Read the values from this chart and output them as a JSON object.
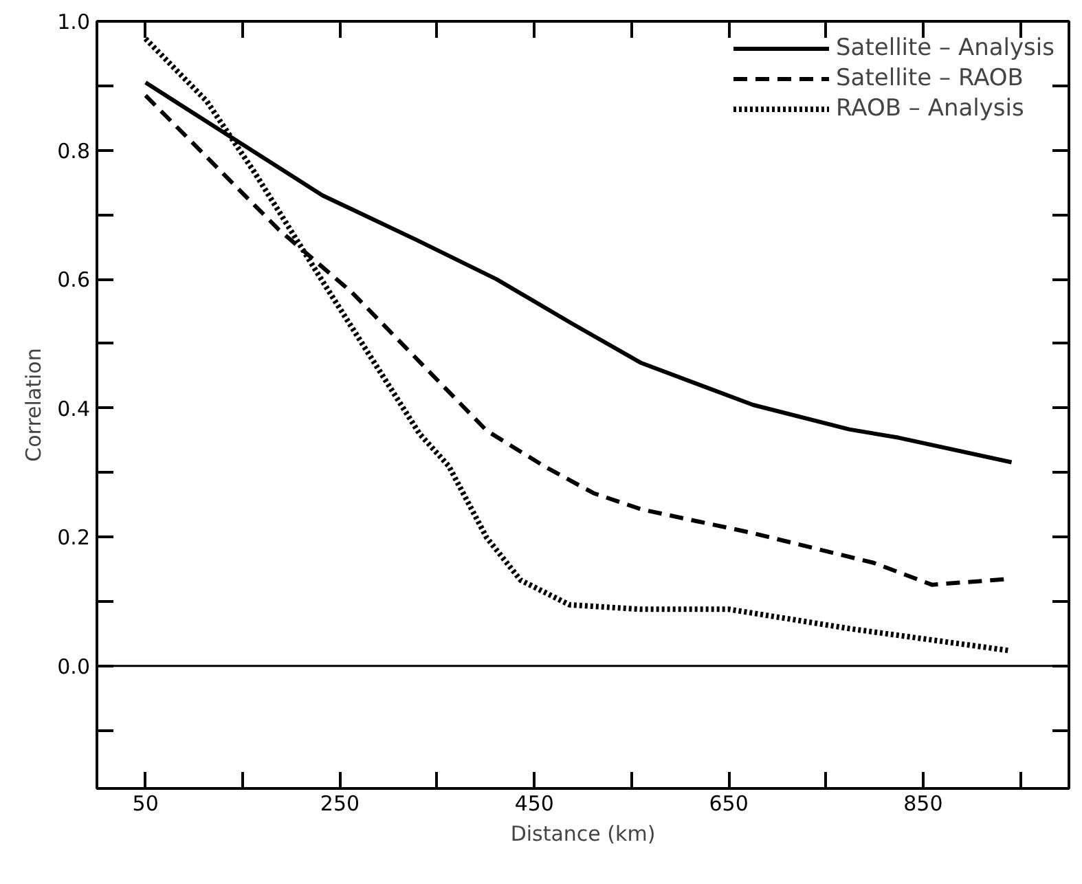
{
  "chart_data": {
    "type": "line",
    "xlabel": "Distance (km)",
    "ylabel": "Correlation",
    "xlim": [
      0,
      1000
    ],
    "ylim": [
      -0.19,
      1.0
    ],
    "xticks": [
      50,
      {
        "value": 150,
        "label": null
      },
      250,
      {
        "value": 350,
        "label": null
      },
      450,
      {
        "value": 550,
        "label": null
      },
      650,
      {
        "value": 750,
        "label": null
      },
      850,
      {
        "value": 950,
        "label": null
      }
    ],
    "yticks": [
      {
        "value": -0.1,
        "label": null
      },
      {
        "value": 0,
        "label": "0.0"
      },
      {
        "value": 0.1,
        "label": null
      },
      {
        "value": 0.2,
        "label": "0.2"
      },
      {
        "value": 0.3,
        "label": null
      },
      {
        "value": 0.4,
        "label": "0.4"
      },
      {
        "value": 0.5,
        "label": null
      },
      {
        "value": 0.6,
        "label": "0.6"
      },
      {
        "value": 0.7,
        "label": null
      },
      {
        "value": 0.8,
        "label": "0.8"
      },
      {
        "value": 0.9,
        "label": null
      },
      {
        "value": 1.0,
        "label": "1.0"
      }
    ],
    "grid": false,
    "legend": "top right",
    "marker": "none",
    "ref_lines": [
      {
        "axis": "y",
        "value": 0,
        "color": "#000000",
        "line_style": "solid"
      }
    ],
    "series": [
      {
        "name": "Satellite – Analysis",
        "color": "#000000",
        "line_style": "solid",
        "x": [
          50,
          128,
          232,
          330,
          411,
          490,
          560,
          675,
          774,
          825,
          941
        ],
        "values": [
          0.905,
          0.83,
          0.73,
          0.66,
          0.6,
          0.53,
          0.47,
          0.405,
          0.367,
          0.354,
          0.316
        ]
      },
      {
        "name": "Satellite – RAOB",
        "color": "#000000",
        "line_style": "dashed",
        "x": [
          50,
          187,
          262,
          401,
          460,
          511,
          560,
          675,
          799,
          859,
          938
        ],
        "values": [
          0.885,
          0.677,
          0.58,
          0.365,
          0.31,
          0.268,
          0.243,
          0.206,
          0.16,
          0.126,
          0.135
        ]
      },
      {
        "name": "RAOB – Analysis",
        "color": "#000000",
        "line_style": "dotted",
        "x": [
          50,
          113,
          162,
          232,
          332,
          362,
          401,
          436,
          486,
          560,
          650,
          774,
          938
        ],
        "values": [
          0.973,
          0.876,
          0.766,
          0.597,
          0.36,
          0.31,
          0.199,
          0.133,
          0.095,
          0.088,
          0.088,
          0.058,
          0.024
        ]
      }
    ]
  }
}
